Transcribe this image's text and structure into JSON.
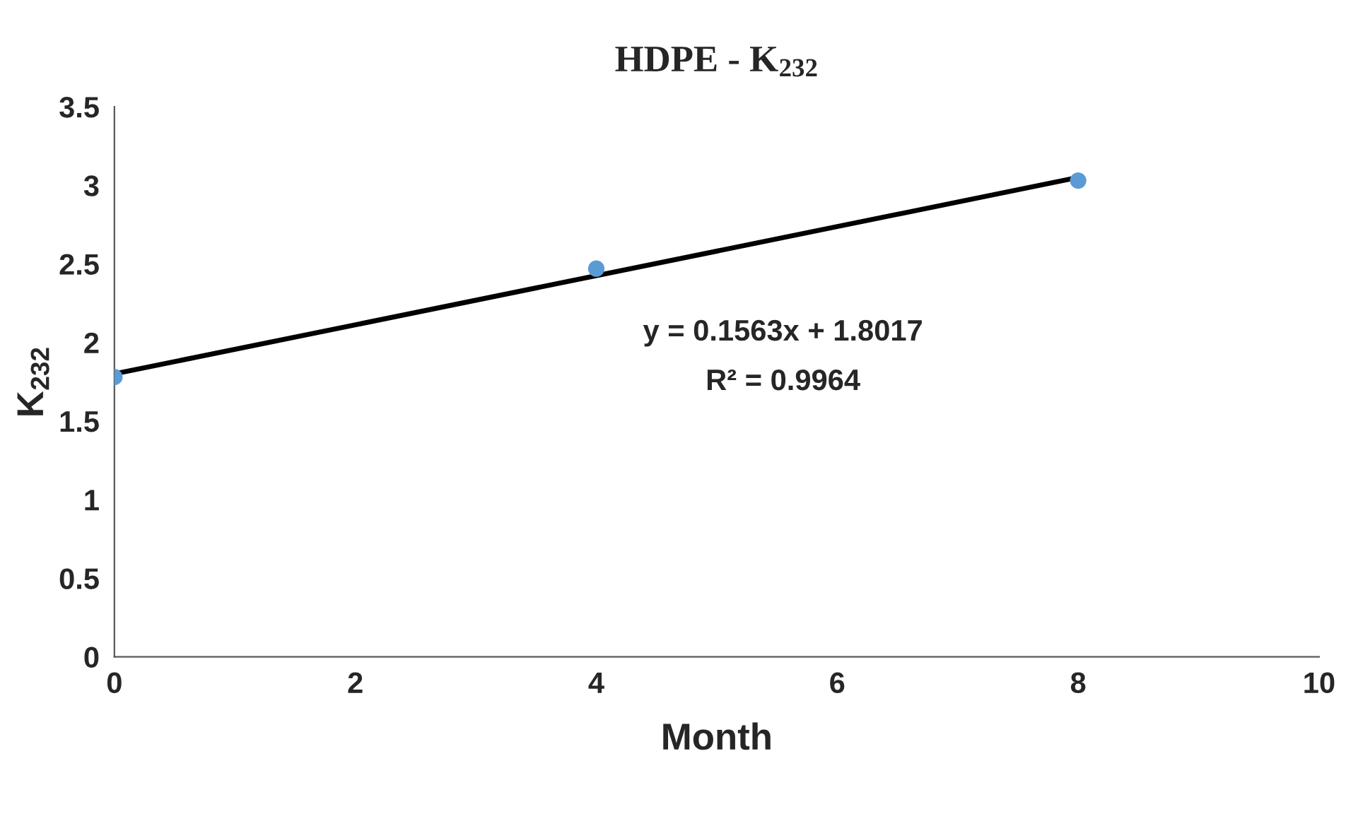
{
  "chart_data": {
    "type": "scatter",
    "title": "HDPE - K$_{232}$",
    "xlabel": "Month",
    "ylabel": "K$_{232}$",
    "xlim": [
      0,
      10
    ],
    "xticks": [
      0,
      2,
      4,
      6,
      8,
      10
    ],
    "ylim": [
      0,
      3.5
    ],
    "yticks": [
      0,
      0.5,
      1,
      1.5,
      2,
      2.5,
      3,
      3.5
    ],
    "grid": false,
    "legend": false,
    "series": [
      {
        "color": "#5b9bd5",
        "x": [
          0,
          4,
          8
        ],
        "values": [
          1.78,
          2.47,
          3.03
        ],
        "marker": "circle"
      },
      {
        "type": "line",
        "color": "#000000",
        "x": [
          0,
          8
        ],
        "values": [
          1.8,
          3.05
        ],
        "line_style": "solid",
        "marker": "none"
      }
    ],
    "annotations": [
      "y = 0.1563x + 1.8017",
      "R² = 0.9964"
    ]
  }
}
